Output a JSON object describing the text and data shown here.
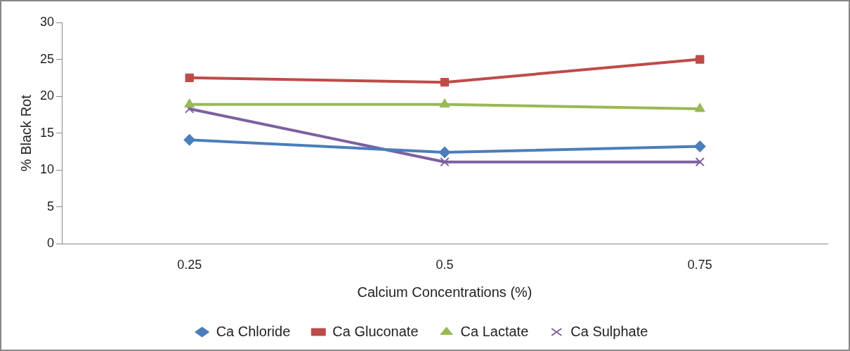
{
  "chart_data": {
    "type": "line",
    "xlabel": "Calcium Concentrations (%)",
    "ylabel": "% Black Rot",
    "categories": [
      "0.25",
      "0.5",
      "0.75"
    ],
    "series": [
      {
        "name": "Ca Chloride",
        "color": "#4a7ebb",
        "marker": "diamond",
        "values": [
          14.1,
          12.4,
          13.2
        ]
      },
      {
        "name": "Ca Gluconate",
        "color": "#be4b48",
        "marker": "square",
        "values": [
          22.5,
          21.9,
          25
        ]
      },
      {
        "name": "Ca Lactate",
        "color": "#98b954",
        "marker": "triangle",
        "values": [
          18.9,
          18.9,
          18.3
        ]
      },
      {
        "name": "Ca Sulphate",
        "color": "#7d60a0",
        "marker": "cross",
        "values": [
          18.3,
          11.1,
          11.1
        ]
      }
    ],
    "ylim": [
      0,
      30
    ],
    "yticks": [
      0,
      5,
      10,
      15,
      20,
      25,
      30
    ],
    "grid": false,
    "legend": "bottom",
    "line_style": "solid"
  }
}
